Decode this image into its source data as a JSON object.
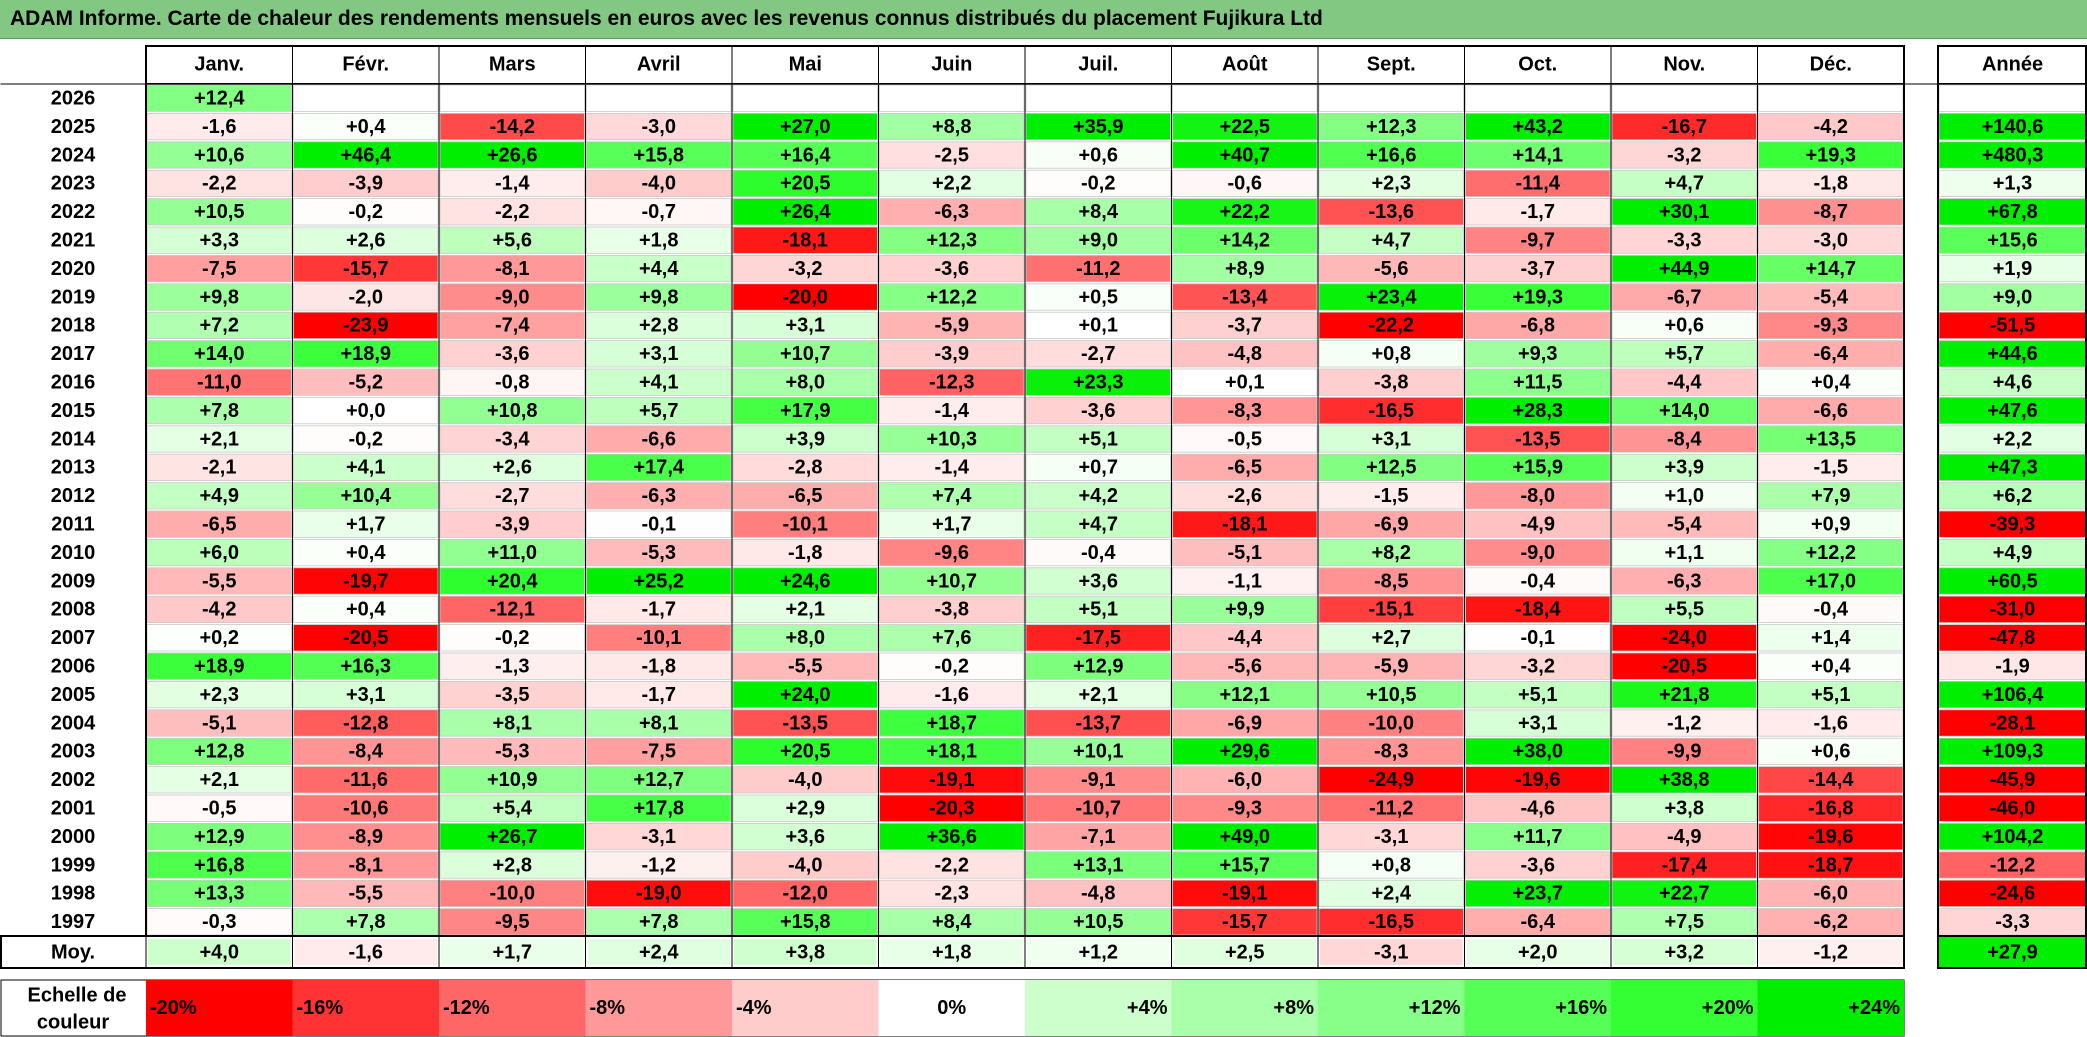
{
  "title": "ADAM Informe. Carte de chaleur des rendements mensuels en euros avec les revenus connus distribués du placement Fujikura Ltd",
  "chart_data": {
    "type": "heatmap",
    "title": "ADAM Informe. Carte de chaleur des rendements mensuels en euros avec les revenus connus distribués du placement Fujikura Ltd",
    "columns": [
      "Janv.",
      "Févr.",
      "Mars",
      "Avril",
      "Mai",
      "Juin",
      "Juil.",
      "Août",
      "Sept.",
      "Oct.",
      "Nov.",
      "Déc."
    ],
    "year_header": "Année",
    "rows": [
      {
        "year": "2026",
        "values": [
          12.4,
          null,
          null,
          null,
          null,
          null,
          null,
          null,
          null,
          null,
          null,
          null
        ],
        "labels": [
          "+12,4",
          "",
          "",
          "",
          "",
          "",
          "",
          "",
          "",
          "",
          "",
          ""
        ],
        "annual": null,
        "annual_label": ""
      },
      {
        "year": "2025",
        "values": [
          -1.6,
          0.4,
          -14.2,
          -3.0,
          27.0,
          8.8,
          35.9,
          22.5,
          12.3,
          43.2,
          -16.7,
          -4.2
        ],
        "labels": [
          "-1,6",
          "+0,4",
          "-14,2",
          "-3,0",
          "+27,0",
          "+8,8",
          "+35,9",
          "+22,5",
          "+12,3",
          "+43,2",
          "-16,7",
          "-4,2"
        ],
        "annual": 140.6,
        "annual_label": "+140,6"
      },
      {
        "year": "2024",
        "values": [
          10.6,
          46.4,
          26.6,
          15.8,
          16.4,
          -2.5,
          0.6,
          40.7,
          16.6,
          14.1,
          -3.2,
          19.3
        ],
        "labels": [
          "+10,6",
          "+46,4",
          "+26,6",
          "+15,8",
          "+16,4",
          "-2,5",
          "+0,6",
          "+40,7",
          "+16,6",
          "+14,1",
          "-3,2",
          "+19,3"
        ],
        "annual": 480.3,
        "annual_label": "+480,3"
      },
      {
        "year": "2023",
        "values": [
          -2.2,
          -3.9,
          -1.4,
          -4.0,
          20.5,
          2.2,
          -0.2,
          -0.6,
          2.3,
          -11.4,
          4.7,
          -1.8
        ],
        "labels": [
          "-2,2",
          "-3,9",
          "-1,4",
          "-4,0",
          "+20,5",
          "+2,2",
          "-0,2",
          "-0,6",
          "+2,3",
          "-11,4",
          "+4,7",
          "-1,8"
        ],
        "annual": 1.3,
        "annual_label": "+1,3"
      },
      {
        "year": "2022",
        "values": [
          10.5,
          -0.2,
          -2.2,
          -0.7,
          26.4,
          -6.3,
          8.4,
          22.2,
          -13.6,
          -1.7,
          30.1,
          -8.7
        ],
        "labels": [
          "+10,5",
          "-0,2",
          "-2,2",
          "-0,7",
          "+26,4",
          "-6,3",
          "+8,4",
          "+22,2",
          "-13,6",
          "-1,7",
          "+30,1",
          "-8,7"
        ],
        "annual": 67.8,
        "annual_label": "+67,8"
      },
      {
        "year": "2021",
        "values": [
          3.3,
          2.6,
          5.6,
          1.8,
          -18.1,
          12.3,
          9.0,
          14.2,
          4.7,
          -9.7,
          -3.3,
          -3.0
        ],
        "labels": [
          "+3,3",
          "+2,6",
          "+5,6",
          "+1,8",
          "-18,1",
          "+12,3",
          "+9,0",
          "+14,2",
          "+4,7",
          "-9,7",
          "-3,3",
          "-3,0"
        ],
        "annual": 15.6,
        "annual_label": "+15,6"
      },
      {
        "year": "2020",
        "values": [
          -7.5,
          -15.7,
          -8.1,
          4.4,
          -3.2,
          -3.6,
          -11.2,
          8.9,
          -5.6,
          -3.7,
          44.9,
          14.7
        ],
        "labels": [
          "-7,5",
          "-15,7",
          "-8,1",
          "+4,4",
          "-3,2",
          "-3,6",
          "-11,2",
          "+8,9",
          "-5,6",
          "-3,7",
          "+44,9",
          "+14,7"
        ],
        "annual": 1.9,
        "annual_label": "+1,9"
      },
      {
        "year": "2019",
        "values": [
          9.8,
          -2.0,
          -9.0,
          9.8,
          -20.0,
          12.2,
          0.5,
          -13.4,
          23.4,
          19.3,
          -6.7,
          -5.4
        ],
        "labels": [
          "+9,8",
          "-2,0",
          "-9,0",
          "+9,8",
          "-20,0",
          "+12,2",
          "+0,5",
          "-13,4",
          "+23,4",
          "+19,3",
          "-6,7",
          "-5,4"
        ],
        "annual": 9.0,
        "annual_label": "+9,0"
      },
      {
        "year": "2018",
        "values": [
          7.2,
          -23.9,
          -7.4,
          2.8,
          3.1,
          -5.9,
          0.1,
          -3.7,
          -22.2,
          -6.8,
          0.6,
          -9.3
        ],
        "labels": [
          "+7,2",
          "-23,9",
          "-7,4",
          "+2,8",
          "+3,1",
          "-5,9",
          "+0,1",
          "-3,7",
          "-22,2",
          "-6,8",
          "+0,6",
          "-9,3"
        ],
        "annual": -51.5,
        "annual_label": "-51,5"
      },
      {
        "year": "2017",
        "values": [
          14.0,
          18.9,
          -3.6,
          3.1,
          10.7,
          -3.9,
          -2.7,
          -4.8,
          0.8,
          9.3,
          5.7,
          -6.4
        ],
        "labels": [
          "+14,0",
          "+18,9",
          "-3,6",
          "+3,1",
          "+10,7",
          "-3,9",
          "-2,7",
          "-4,8",
          "+0,8",
          "+9,3",
          "+5,7",
          "-6,4"
        ],
        "annual": 44.6,
        "annual_label": "+44,6"
      },
      {
        "year": "2016",
        "values": [
          -11.0,
          -5.2,
          -0.8,
          4.1,
          8.0,
          -12.3,
          23.3,
          0.1,
          -3.8,
          11.5,
          -4.4,
          0.4
        ],
        "labels": [
          "-11,0",
          "-5,2",
          "-0,8",
          "+4,1",
          "+8,0",
          "-12,3",
          "+23,3",
          "+0,1",
          "-3,8",
          "+11,5",
          "-4,4",
          "+0,4"
        ],
        "annual": 4.6,
        "annual_label": "+4,6"
      },
      {
        "year": "2015",
        "values": [
          7.8,
          0.0,
          10.8,
          5.7,
          17.9,
          -1.4,
          -3.6,
          -8.3,
          -16.5,
          28.3,
          14.0,
          -6.6
        ],
        "labels": [
          "+7,8",
          "+0,0",
          "+10,8",
          "+5,7",
          "+17,9",
          "-1,4",
          "-3,6",
          "-8,3",
          "-16,5",
          "+28,3",
          "+14,0",
          "-6,6"
        ],
        "annual": 47.6,
        "annual_label": "+47,6"
      },
      {
        "year": "2014",
        "values": [
          2.1,
          -0.2,
          -3.4,
          -6.6,
          3.9,
          10.3,
          5.1,
          -0.5,
          3.1,
          -13.5,
          -8.4,
          13.5
        ],
        "labels": [
          "+2,1",
          "-0,2",
          "-3,4",
          "-6,6",
          "+3,9",
          "+10,3",
          "+5,1",
          "-0,5",
          "+3,1",
          "-13,5",
          "-8,4",
          "+13,5"
        ],
        "annual": 2.2,
        "annual_label": "+2,2"
      },
      {
        "year": "2013",
        "values": [
          -2.1,
          4.1,
          2.6,
          17.4,
          -2.8,
          -1.4,
          0.7,
          -6.5,
          12.5,
          15.9,
          3.9,
          -1.5
        ],
        "labels": [
          "-2,1",
          "+4,1",
          "+2,6",
          "+17,4",
          "-2,8",
          "-1,4",
          "+0,7",
          "-6,5",
          "+12,5",
          "+15,9",
          "+3,9",
          "-1,5"
        ],
        "annual": 47.3,
        "annual_label": "+47,3"
      },
      {
        "year": "2012",
        "values": [
          4.9,
          10.4,
          -2.7,
          -6.3,
          -6.5,
          7.4,
          4.2,
          -2.6,
          -1.5,
          -8.0,
          1.0,
          7.9
        ],
        "labels": [
          "+4,9",
          "+10,4",
          "-2,7",
          "-6,3",
          "-6,5",
          "+7,4",
          "+4,2",
          "-2,6",
          "-1,5",
          "-8,0",
          "+1,0",
          "+7,9"
        ],
        "annual": 6.2,
        "annual_label": "+6,2"
      },
      {
        "year": "2011",
        "values": [
          -6.5,
          1.7,
          -3.9,
          -0.1,
          -10.1,
          1.7,
          4.7,
          -18.1,
          -6.9,
          -4.9,
          -5.4,
          0.9
        ],
        "labels": [
          "-6,5",
          "+1,7",
          "-3,9",
          "-0,1",
          "-10,1",
          "+1,7",
          "+4,7",
          "-18,1",
          "-6,9",
          "-4,9",
          "-5,4",
          "+0,9"
        ],
        "annual": -39.3,
        "annual_label": "-39,3"
      },
      {
        "year": "2010",
        "values": [
          6.0,
          0.4,
          11.0,
          -5.3,
          -1.8,
          -9.6,
          -0.4,
          -5.1,
          8.2,
          -9.0,
          1.1,
          12.2
        ],
        "labels": [
          "+6,0",
          "+0,4",
          "+11,0",
          "-5,3",
          "-1,8",
          "-9,6",
          "-0,4",
          "-5,1",
          "+8,2",
          "-9,0",
          "+1,1",
          "+12,2"
        ],
        "annual": 4.9,
        "annual_label": "+4,9"
      },
      {
        "year": "2009",
        "values": [
          -5.5,
          -19.7,
          20.4,
          25.2,
          24.6,
          10.7,
          3.6,
          -1.1,
          -8.5,
          -0.4,
          -6.3,
          17.0
        ],
        "labels": [
          "-5,5",
          "-19,7",
          "+20,4",
          "+25,2",
          "+24,6",
          "+10,7",
          "+3,6",
          "-1,1",
          "-8,5",
          "-0,4",
          "-6,3",
          "+17,0"
        ],
        "annual": 60.5,
        "annual_label": "+60,5"
      },
      {
        "year": "2008",
        "values": [
          -4.2,
          0.4,
          -12.1,
          -1.7,
          2.1,
          -3.8,
          5.1,
          9.9,
          -15.1,
          -18.4,
          5.5,
          -0.4
        ],
        "labels": [
          "-4,2",
          "+0,4",
          "-12,1",
          "-1,7",
          "+2,1",
          "-3,8",
          "+5,1",
          "+9,9",
          "-15,1",
          "-18,4",
          "+5,5",
          "-0,4"
        ],
        "annual": -31.0,
        "annual_label": "-31,0"
      },
      {
        "year": "2007",
        "values": [
          0.2,
          -20.5,
          -0.2,
          -10.1,
          8.0,
          7.6,
          -17.5,
          -4.4,
          2.7,
          -0.1,
          -24.0,
          1.4
        ],
        "labels": [
          "+0,2",
          "-20,5",
          "-0,2",
          "-10,1",
          "+8,0",
          "+7,6",
          "-17,5",
          "-4,4",
          "+2,7",
          "-0,1",
          "-24,0",
          "+1,4"
        ],
        "annual": -47.8,
        "annual_label": "-47,8"
      },
      {
        "year": "2006",
        "values": [
          18.9,
          16.3,
          -1.3,
          -1.8,
          -5.5,
          -0.2,
          12.9,
          -5.6,
          -5.9,
          -3.2,
          -20.5,
          0.4
        ],
        "labels": [
          "+18,9",
          "+16,3",
          "-1,3",
          "-1,8",
          "-5,5",
          "-0,2",
          "+12,9",
          "-5,6",
          "-5,9",
          "-3,2",
          "-20,5",
          "+0,4"
        ],
        "annual": -1.9,
        "annual_label": "-1,9"
      },
      {
        "year": "2005",
        "values": [
          2.3,
          3.1,
          -3.5,
          -1.7,
          24.0,
          -1.6,
          2.1,
          12.1,
          10.5,
          5.1,
          21.8,
          5.1
        ],
        "labels": [
          "+2,3",
          "+3,1",
          "-3,5",
          "-1,7",
          "+24,0",
          "-1,6",
          "+2,1",
          "+12,1",
          "+10,5",
          "+5,1",
          "+21,8",
          "+5,1"
        ],
        "annual": 106.4,
        "annual_label": "+106,4"
      },
      {
        "year": "2004",
        "values": [
          -5.1,
          -12.8,
          8.1,
          8.1,
          -13.5,
          18.7,
          -13.7,
          -6.9,
          -10.0,
          3.1,
          -1.2,
          -1.6
        ],
        "labels": [
          "-5,1",
          "-12,8",
          "+8,1",
          "+8,1",
          "-13,5",
          "+18,7",
          "-13,7",
          "-6,9",
          "-10,0",
          "+3,1",
          "-1,2",
          "-1,6"
        ],
        "annual": -28.1,
        "annual_label": "-28,1"
      },
      {
        "year": "2003",
        "values": [
          12.8,
          -8.4,
          -5.3,
          -7.5,
          20.5,
          18.1,
          10.1,
          29.6,
          -8.3,
          38.0,
          -9.9,
          0.6
        ],
        "labels": [
          "+12,8",
          "-8,4",
          "-5,3",
          "-7,5",
          "+20,5",
          "+18,1",
          "+10,1",
          "+29,6",
          "-8,3",
          "+38,0",
          "-9,9",
          "+0,6"
        ],
        "annual": 109.3,
        "annual_label": "+109,3"
      },
      {
        "year": "2002",
        "values": [
          2.1,
          -11.6,
          10.9,
          12.7,
          -4.0,
          -19.1,
          -9.1,
          -6.0,
          -24.9,
          -19.6,
          38.8,
          -14.4
        ],
        "labels": [
          "+2,1",
          "-11,6",
          "+10,9",
          "+12,7",
          "-4,0",
          "-19,1",
          "-9,1",
          "-6,0",
          "-24,9",
          "-19,6",
          "+38,8",
          "-14,4"
        ],
        "annual": -45.9,
        "annual_label": "-45,9"
      },
      {
        "year": "2001",
        "values": [
          -0.5,
          -10.6,
          5.4,
          17.8,
          2.9,
          -20.3,
          -10.7,
          -9.3,
          -11.2,
          -4.6,
          3.8,
          -16.8
        ],
        "labels": [
          "-0,5",
          "-10,6",
          "+5,4",
          "+17,8",
          "+2,9",
          "-20,3",
          "-10,7",
          "-9,3",
          "-11,2",
          "-4,6",
          "+3,8",
          "-16,8"
        ],
        "annual": -46.0,
        "annual_label": "-46,0"
      },
      {
        "year": "2000",
        "values": [
          12.9,
          -8.9,
          26.7,
          -3.1,
          3.6,
          36.6,
          -7.1,
          49.0,
          -3.1,
          11.7,
          -4.9,
          -19.6
        ],
        "labels": [
          "+12,9",
          "-8,9",
          "+26,7",
          "-3,1",
          "+3,6",
          "+36,6",
          "-7,1",
          "+49,0",
          "-3,1",
          "+11,7",
          "-4,9",
          "-19,6"
        ],
        "annual": 104.2,
        "annual_label": "+104,2"
      },
      {
        "year": "1999",
        "values": [
          16.8,
          -8.1,
          2.8,
          -1.2,
          -4.0,
          -2.2,
          13.1,
          15.7,
          0.8,
          -3.6,
          -17.4,
          -18.7
        ],
        "labels": [
          "+16,8",
          "-8,1",
          "+2,8",
          "-1,2",
          "-4,0",
          "-2,2",
          "+13,1",
          "+15,7",
          "+0,8",
          "-3,6",
          "-17,4",
          "-18,7"
        ],
        "annual": -12.2,
        "annual_label": "-12,2"
      },
      {
        "year": "1998",
        "values": [
          13.3,
          -5.5,
          -10.0,
          -19.0,
          -12.0,
          -2.3,
          -4.8,
          -19.1,
          2.4,
          23.7,
          22.7,
          -6.0
        ],
        "labels": [
          "+13,3",
          "-5,5",
          "-10,0",
          "-19,0",
          "-12,0",
          "-2,3",
          "-4,8",
          "-19,1",
          "+2,4",
          "+23,7",
          "+22,7",
          "-6,0"
        ],
        "annual": -24.6,
        "annual_label": "-24,6"
      },
      {
        "year": "1997",
        "values": [
          -0.3,
          7.8,
          -9.5,
          7.8,
          15.8,
          8.4,
          10.5,
          -15.7,
          -16.5,
          -6.4,
          7.5,
          -6.2
        ],
        "labels": [
          "-0,3",
          "+7,8",
          "-9,5",
          "+7,8",
          "+15,8",
          "+8,4",
          "+10,5",
          "-15,7",
          "-16,5",
          "-6,4",
          "+7,5",
          "-6,2"
        ],
        "annual": -3.3,
        "annual_label": "-3,3"
      }
    ],
    "average": {
      "label": "Moy.",
      "values": [
        4.0,
        -1.6,
        1.7,
        2.4,
        3.8,
        1.8,
        1.2,
        2.5,
        -3.1,
        2.0,
        3.2,
        -1.2
      ],
      "labels": [
        "+4,0",
        "-1,6",
        "+1,7",
        "+2,4",
        "+3,8",
        "+1,8",
        "+1,2",
        "+2,5",
        "-3,1",
        "+2,0",
        "+3,2",
        "-1,2"
      ],
      "annual": 27.9,
      "annual_label": "+27,9"
    },
    "color_scale": {
      "label_line1": "Echelle de",
      "label_line2": "couleur",
      "stops": [
        {
          "value": -20,
          "label": "-20%",
          "color": "#ff0000"
        },
        {
          "value": -16,
          "label": "-16%",
          "color": "#ff3333"
        },
        {
          "value": -12,
          "label": "-12%",
          "color": "#ff6666"
        },
        {
          "value": -8,
          "label": "-8%",
          "color": "#ff9999"
        },
        {
          "value": -4,
          "label": "-4%",
          "color": "#ffcccc"
        },
        {
          "value": 0,
          "label": "0%",
          "color": "#ffffff"
        },
        {
          "value": 4,
          "label": "+4%",
          "color": "#ccffcc"
        },
        {
          "value": 8,
          "label": "+8%",
          "color": "#aaffaa"
        },
        {
          "value": 12,
          "label": "+12%",
          "color": "#88ff88"
        },
        {
          "value": 16,
          "label": "+16%",
          "color": "#55ff55"
        },
        {
          "value": 20,
          "label": "+20%",
          "color": "#33ff33"
        },
        {
          "value": 24,
          "label": "+24%",
          "color": "#00ee00"
        }
      ]
    }
  }
}
